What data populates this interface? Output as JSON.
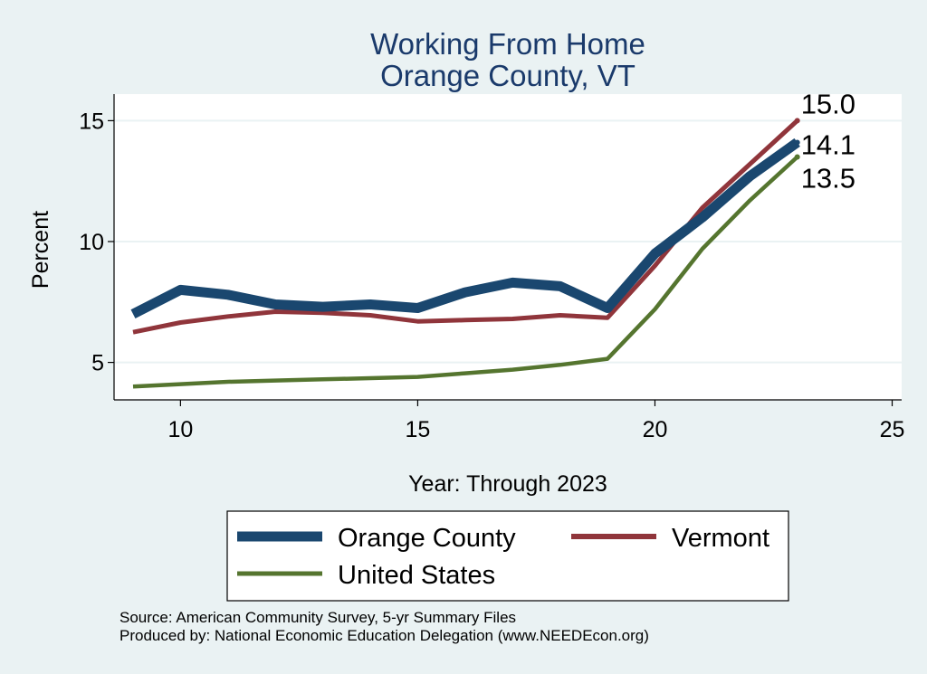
{
  "chart_data": {
    "type": "line",
    "title": [
      "Working From Home",
      "Orange County, VT"
    ],
    "xlabel": "Year: Through 2023",
    "ylabel": "Percent",
    "xlim": [
      8.6,
      25.2
    ],
    "ylim": [
      3.45,
      16.1
    ],
    "xticks": [
      10,
      15,
      20,
      25
    ],
    "yticks": [
      5,
      10,
      15
    ],
    "grid": "horizontal",
    "x": [
      9,
      10,
      11,
      12,
      13,
      14,
      15,
      16,
      17,
      18,
      19,
      20,
      21,
      22,
      23
    ],
    "series": [
      {
        "name": "Orange County",
        "color": "#1a476f",
        "values": [
          7.0,
          8.0,
          7.8,
          7.4,
          7.3,
          7.4,
          7.25,
          7.9,
          8.3,
          8.15,
          7.25,
          9.5,
          11.0,
          12.7,
          14.1
        ],
        "end_label": "14.1"
      },
      {
        "name": "Vermont",
        "color": "#90353b",
        "values": [
          6.25,
          6.65,
          6.9,
          7.1,
          7.05,
          6.95,
          6.7,
          6.75,
          6.8,
          6.95,
          6.85,
          9.0,
          11.4,
          13.2,
          15.0
        ],
        "end_label": "15.0"
      },
      {
        "name": "United States",
        "color": "#55752f",
        "values": [
          4.0,
          4.1,
          4.2,
          4.25,
          4.3,
          4.35,
          4.4,
          4.55,
          4.7,
          4.9,
          5.15,
          7.2,
          9.7,
          11.7,
          13.5
        ],
        "end_label": "13.5"
      }
    ],
    "legend_position": "bottom"
  },
  "source_lines": [
    "Source: American Community Survey, 5-yr Summary Files",
    "Produced by: National Economic Education Delegation (www.NEEDEcon.org)"
  ]
}
